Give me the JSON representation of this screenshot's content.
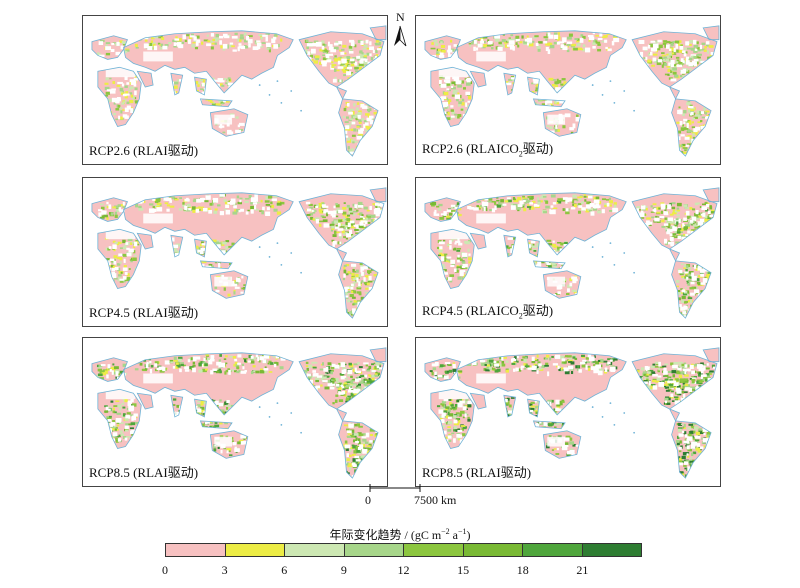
{
  "panels": [
    {
      "id": "p1",
      "label": "RCP2.6 (RLAI驱动)",
      "label_html": "RCP2.6 (RLAI驱动)",
      "intensity": 0.25
    },
    {
      "id": "p2",
      "label": "RCP2.6 (RLAICO₂驱动)",
      "label_html": "RCP2.6 (RLAICO<sub style=\"font-size:8px\">2</sub>驱动)",
      "intensity": 0.35
    },
    {
      "id": "p3",
      "label": "RCP4.5 (RLAI驱动)",
      "label_html": "RCP4.5 (RLAI驱动)",
      "intensity": 0.45
    },
    {
      "id": "p4",
      "label": "RCP4.5 (RLAICO₂驱动)",
      "label_html": "RCP4.5 (RLAICO<sub style=\"font-size:8px\">2</sub>驱动)",
      "intensity": 0.55
    },
    {
      "id": "p5",
      "label": "RCP8.5 (RLAI驱动)",
      "label_html": "RCP8.5 (RLAI驱动)",
      "intensity": 0.7
    },
    {
      "id": "p6",
      "label": "RCP8.5 (RLAI驱动)",
      "label_html": "RCP8.5 (RLAI驱动)",
      "intensity": 0.85
    }
  ],
  "north_label": "N",
  "scale": {
    "start": "0",
    "end": "7500 km"
  },
  "legend": {
    "title": "年际变化趋势 / (gC m⁻² a⁻¹)",
    "title_html": "年际变化趋势 / (gC m<sup style=\"font-size:8px\">−2</sup> a<sup style=\"font-size:8px\">−1</sup>)",
    "ticks": [
      "0",
      "3",
      "6",
      "9",
      "12",
      "15",
      "18",
      "21"
    ],
    "colors": [
      "#f7c1c1",
      "#eded45",
      "#cde8b3",
      "#a7d68a",
      "#8cc63f",
      "#79b934",
      "#4fa63c",
      "#2e7d32"
    ]
  },
  "colors": {
    "coast": "#6fb3d6",
    "border": "#444444"
  }
}
